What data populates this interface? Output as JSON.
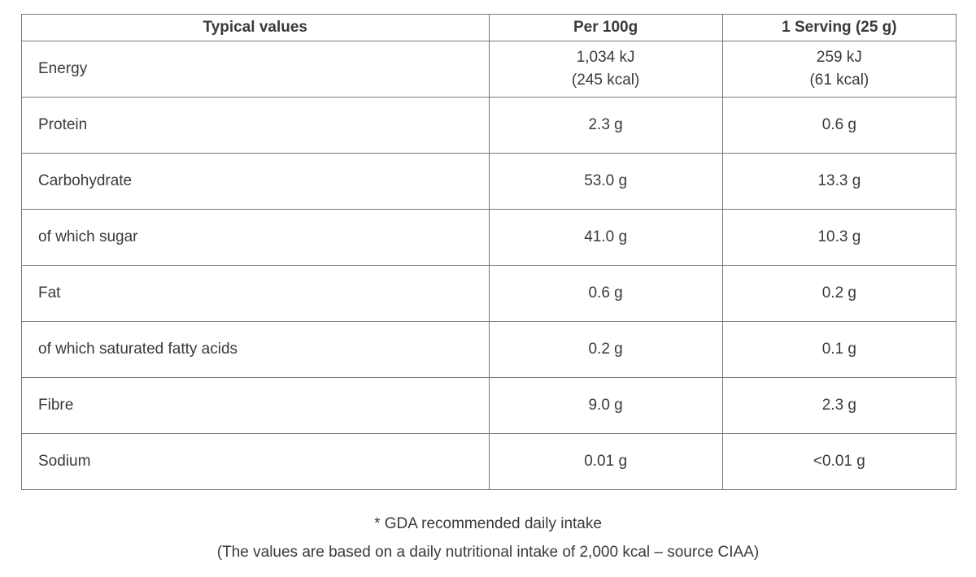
{
  "table": {
    "headers": [
      "Typical values",
      "Per 100g",
      "1 Serving (25 g)"
    ],
    "rows": [
      {
        "label": "Energy",
        "per_100g": "1,034 kJ\n(245 kcal)",
        "per_serving": "259 kJ\n(61 kcal)"
      },
      {
        "label": "Protein",
        "per_100g": "2.3 g",
        "per_serving": "0.6 g"
      },
      {
        "label": "Carbohydrate",
        "per_100g": "53.0 g",
        "per_serving": "13.3 g"
      },
      {
        "label": "of which sugar",
        "per_100g": "41.0 g",
        "per_serving": "10.3 g"
      },
      {
        "label": "Fat",
        "per_100g": "0.6 g",
        "per_serving": "0.2 g"
      },
      {
        "label": "of which saturated fatty acids",
        "per_100g": "0.2 g",
        "per_serving": "0.1 g"
      },
      {
        "label": "Fibre",
        "per_100g": "9.0 g",
        "per_serving": "2.3 g"
      },
      {
        "label": "Sodium",
        "per_100g": "0.01 g",
        "per_serving": "<0.01 g"
      }
    ]
  },
  "footnotes": [
    "* GDA recommended daily intake",
    "(The values are based on a daily nutritional intake of 2,000 kcal – source CIAA)"
  ],
  "colors": {
    "text": "#3a3a3a",
    "border": "#777777",
    "background": "#ffffff"
  }
}
